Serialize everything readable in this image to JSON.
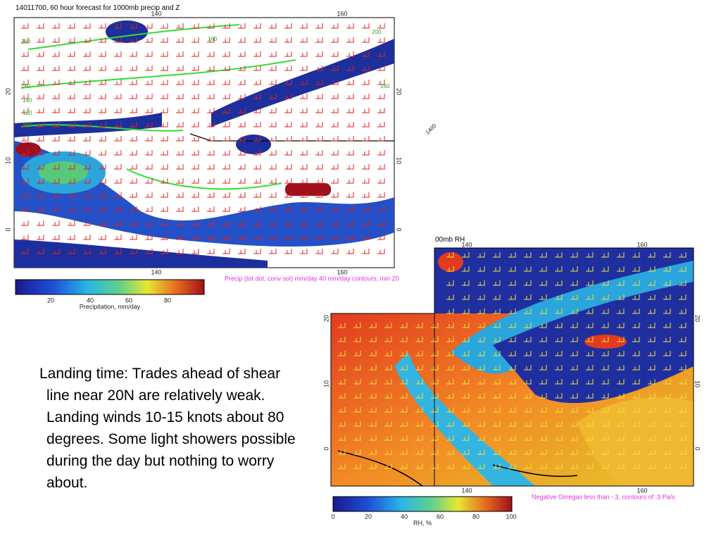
{
  "map1": {
    "title": "14011700, 60 hour forecast for 1000mb precip and Z",
    "lon_labels_top": [
      "140",
      "160"
    ],
    "lon_labels_bottom": [
      "140",
      "160"
    ],
    "lat_labels_left": [
      "20",
      "10",
      "0"
    ],
    "lat_labels_right": [
      "20",
      "10",
      "0"
    ],
    "contour_labels": [
      "200",
      "160",
      "140",
      "120",
      "100",
      "160",
      "200",
      "160"
    ],
    "annotation": "1400",
    "caption": "Precip (tot dot, conv sol) mm/day 40 mm/day contours, min 20",
    "colorbar": {
      "ticks": [
        "20",
        "40",
        "60",
        "80"
      ],
      "label": "Precipitation, mm/day"
    }
  },
  "map2": {
    "title": "00mb RH",
    "lon_labels_top": [
      "140",
      "160"
    ],
    "lon_labels_bottom": [
      "140",
      "160"
    ],
    "lat_labels_left": [
      "20",
      "10",
      "0"
    ],
    "lat_labels_right": [
      "20",
      "10",
      "0"
    ],
    "caption": "Negative Omegas less than -.3, contours of .3 Pa/s",
    "colorbar": {
      "ticks": [
        "0",
        "20",
        "40",
        "60",
        "80",
        "100"
      ],
      "label": "RH, %"
    }
  },
  "body_text": [
    "Landing time:  Trades ahead of shear",
    "line near 20N are relatively weak.",
    "Landing winds 10-15 knots about 80",
    "degrees. Some light showers possible",
    "during the day but nothing to worry",
    "about."
  ]
}
